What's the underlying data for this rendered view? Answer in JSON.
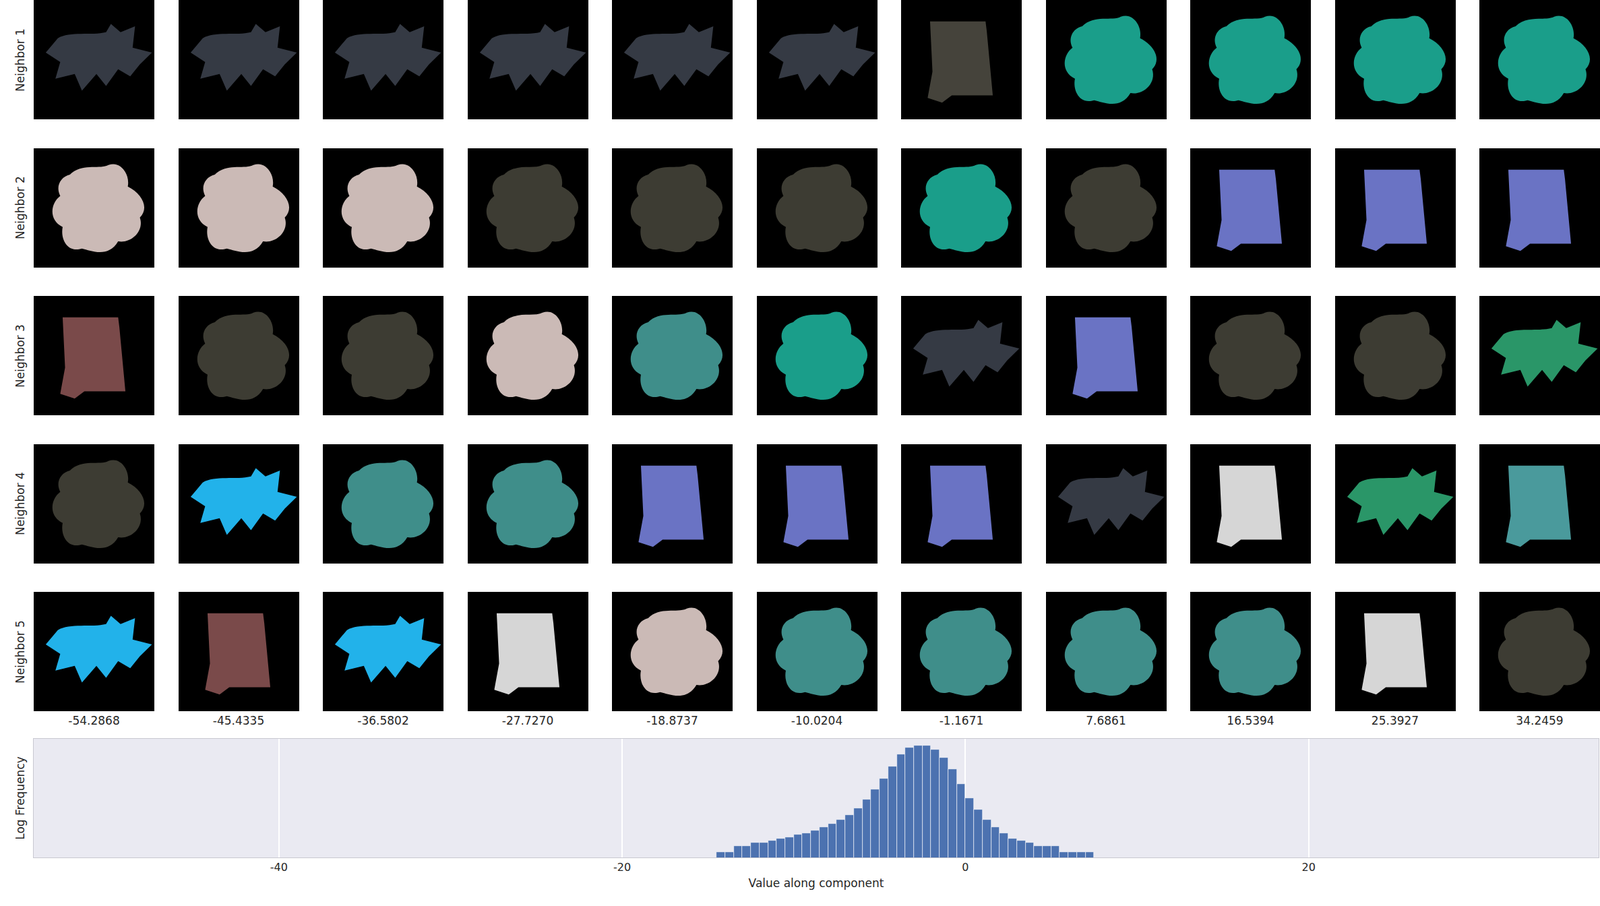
{
  "chart_data": [
    {
      "type": "image_grid",
      "categories": [
        -54.2868,
        -45.4335,
        -36.5802,
        {
          "value": -27.727,
          "label": "-27.7270"
        },
        -18.8737,
        -10.0204,
        -1.1671,
        7.6861,
        16.5394,
        25.3927,
        34.2459
      ],
      "series": [
        {
          "name": "Neighbor 1",
          "colors": [
            "#353a44",
            "#353a44",
            "#353a44",
            "#353a44",
            "#353a44",
            "#353a44",
            "#45433b",
            "#1a9e8a",
            "#1a9e8a",
            "#1a9e8a",
            "#1a9e8a"
          ]
        },
        {
          "name": "Neighbor 2",
          "colors": [
            "#cbbab6",
            "#cbbab6",
            "#cbbab6",
            "#3d3c33",
            "#3d3c33",
            "#3d3c33",
            "#1a9e8a",
            "#3d3c33",
            "#6a73c4",
            "#6a73c4",
            "#6a73c4"
          ]
        },
        {
          "name": "Neighbor 3",
          "colors": [
            "#7a4a4a",
            "#3d3c33",
            "#3d3c33",
            "#cbbab6",
            "#3f8e8a",
            "#1a9e8a",
            "#353a44",
            "#6a73c4",
            "#3d3c33",
            "#3d3c33",
            "#2a9668"
          ]
        },
        {
          "name": "Neighbor 4",
          "colors": [
            "#3d3c33",
            "#22b2ea",
            "#3f8e8a",
            "#3f8e8a",
            "#6a73c4",
            "#6a73c4",
            "#6a73c4",
            "#353a44",
            "#d6d6d6",
            "#2a9668",
            "#4a9a9c"
          ]
        },
        {
          "name": "Neighbor 5",
          "colors": [
            "#22b2ea",
            "#7a4a4a",
            "#22b2ea",
            "#d6d6d6",
            "#cbbab6",
            "#3f8e8a",
            "#3f8e8a",
            "#3f8e8a",
            "#3f8e8a",
            "#d6d6d6",
            "#3d3c33"
          ]
        }
      ]
    },
    {
      "type": "histogram",
      "xlabel": "Value along component",
      "ylabel": "Log Frequency",
      "bins": [
        -14.5,
        -14,
        -13.5,
        -13,
        -12.5,
        -12,
        -11.5,
        -11,
        -10.5,
        -10,
        -9.5,
        -9,
        -8.5,
        -8,
        -7.5,
        -7,
        -6.5,
        -6,
        -5.5,
        -5,
        -4.5,
        -4,
        -3.5,
        -3,
        -2.5,
        -2,
        -1.5,
        -1,
        -0.5,
        0,
        0.5,
        1,
        1.5,
        2,
        2.5,
        3,
        3.5,
        4,
        4.5,
        5,
        5.5,
        6,
        6.5,
        7,
        7.5
      ],
      "counts": [
        1,
        1,
        2,
        2,
        3,
        3,
        4,
        5,
        6,
        8,
        10,
        14,
        20,
        30,
        50,
        90,
        200,
        600,
        2000,
        8000,
        35000,
        150000,
        340000,
        430000,
        430000,
        270000,
        100000,
        25000,
        4000,
        700,
        170,
        50,
        20,
        10,
        5,
        4,
        3,
        2,
        2,
        2,
        1,
        1,
        1,
        1
      ],
      "color": "#4c72b0",
      "xlim": [
        -54.2868,
        36.9
      ],
      "xticks": [
        -40,
        -20,
        0,
        20
      ],
      "ylim": [
        0.5,
        1000000
      ],
      "log": "y",
      "grid": true,
      "tick_labels": "x"
    }
  ]
}
